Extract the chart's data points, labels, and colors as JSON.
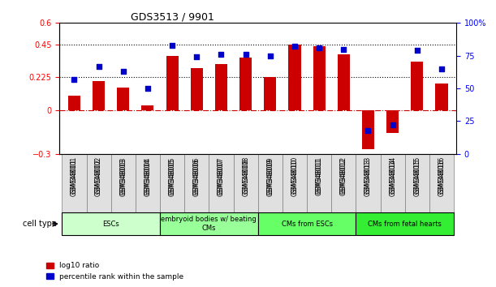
{
  "title": "GDS3513 / 9901",
  "samples": [
    "GSM348001",
    "GSM348002",
    "GSM348003",
    "GSM348004",
    "GSM348005",
    "GSM348006",
    "GSM348007",
    "GSM348008",
    "GSM348009",
    "GSM348010",
    "GSM348011",
    "GSM348012",
    "GSM348013",
    "GSM348014",
    "GSM348015",
    "GSM348016"
  ],
  "log10_ratio": [
    0.1,
    0.2,
    0.155,
    0.035,
    0.375,
    0.29,
    0.315,
    0.36,
    0.225,
    0.45,
    0.44,
    0.385,
    -0.27,
    -0.16,
    0.335,
    0.185
  ],
  "percentile_rank": [
    57,
    67,
    63,
    50,
    83,
    74,
    76,
    76,
    75,
    82,
    81,
    80,
    18,
    22,
    79,
    65
  ],
  "ylim_left": [
    -0.3,
    0.6
  ],
  "ylim_right": [
    0,
    100
  ],
  "yticks_left": [
    -0.3,
    0,
    0.225,
    0.45,
    0.6
  ],
  "yticks_right": [
    0,
    25,
    50,
    75,
    100
  ],
  "hlines": [
    0.225,
    0.45
  ],
  "bar_color": "#cc0000",
  "dot_color": "#0000cc",
  "zero_line_color": "#cc0000",
  "cell_types": [
    {
      "label": "ESCs",
      "start": 0,
      "end": 3,
      "color": "#ccffcc"
    },
    {
      "label": "embryoid bodies w/ beating\nCMs",
      "start": 4,
      "end": 7,
      "color": "#99ff99"
    },
    {
      "label": "CMs from ESCs",
      "start": 8,
      "end": 11,
      "color": "#66ff66"
    },
    {
      "label": "CMs from fetal hearts",
      "start": 12,
      "end": 15,
      "color": "#33ee33"
    }
  ],
  "legend_bar_label": "log10 ratio",
  "legend_dot_label": "percentile rank within the sample",
  "xlabel_cell_type": "cell type"
}
